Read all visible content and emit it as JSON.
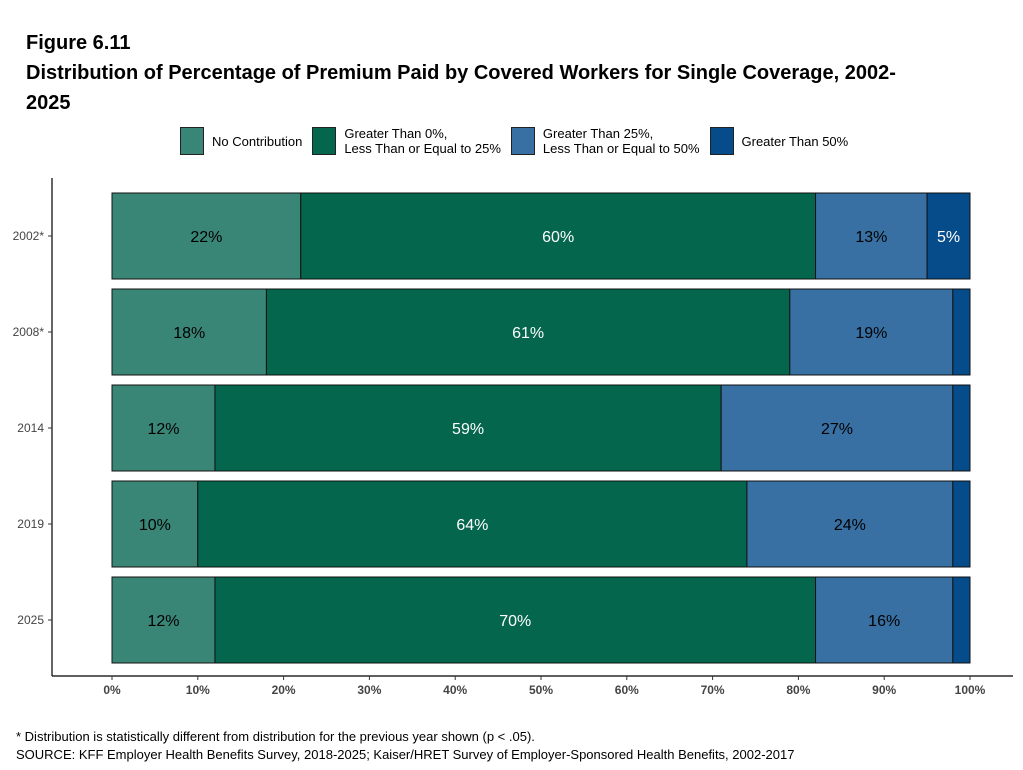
{
  "figure_label": "Figure 6.11",
  "figure_title": "Distribution of Percentage of Premium Paid by Covered Workers for Single Coverage, 2002-2025",
  "footnote": "* Distribution is statistically different from distribution for the previous year shown (p < .05).",
  "source": "SOURCE: KFF Employer Health Benefits Survey, 2018-2025; Kaiser/HRET Survey of Employer-Sponsored Health Benefits, 2002-2017",
  "legend": [
    {
      "label": "No Contribution",
      "color": "#3a8676"
    },
    {
      "label": "Greater Than 0%,\nLess Than or Equal to 25%",
      "color": "#05664e"
    },
    {
      "label": "Greater Than 25%,\nLess Than or Equal to 50%",
      "color": "#3870a3"
    },
    {
      "label": "Greater Than 50%",
      "color": "#064b8a"
    }
  ],
  "chart_data": {
    "type": "bar",
    "orientation": "horizontal",
    "stacked": true,
    "categories": [
      "2002*",
      "2008*",
      "2014",
      "2019",
      "2025"
    ],
    "series": [
      {
        "name": "No Contribution",
        "color": "#3a8676",
        "label_color": "#000000",
        "values": [
          22,
          18,
          12,
          10,
          12
        ],
        "labels": [
          "22%",
          "18%",
          "12%",
          "10%",
          "12%"
        ]
      },
      {
        "name": "Greater Than 0%, Less Than or Equal to 25%",
        "color": "#05664e",
        "label_color": "#ffffff",
        "values": [
          60,
          61,
          59,
          64,
          70
        ],
        "labels": [
          "60%",
          "61%",
          "59%",
          "64%",
          "70%"
        ]
      },
      {
        "name": "Greater Than 25%, Less Than or Equal to 50%",
        "color": "#3870a3",
        "label_color": "#000000",
        "values": [
          13,
          19,
          27,
          24,
          16
        ],
        "labels": [
          "13%",
          "19%",
          "27%",
          "24%",
          "16%"
        ]
      },
      {
        "name": "Greater Than 50%",
        "color": "#064b8a",
        "label_color": "#ffffff",
        "values": [
          5,
          2,
          2,
          2,
          2
        ],
        "labels": [
          "5%",
          "",
          "",
          "",
          ""
        ]
      }
    ],
    "xlim": [
      0,
      100
    ],
    "x_ticks": [
      "0%",
      "10%",
      "20%",
      "30%",
      "40%",
      "50%",
      "60%",
      "70%",
      "80%",
      "90%",
      "100%"
    ],
    "grid": false,
    "legend_position": "top"
  }
}
